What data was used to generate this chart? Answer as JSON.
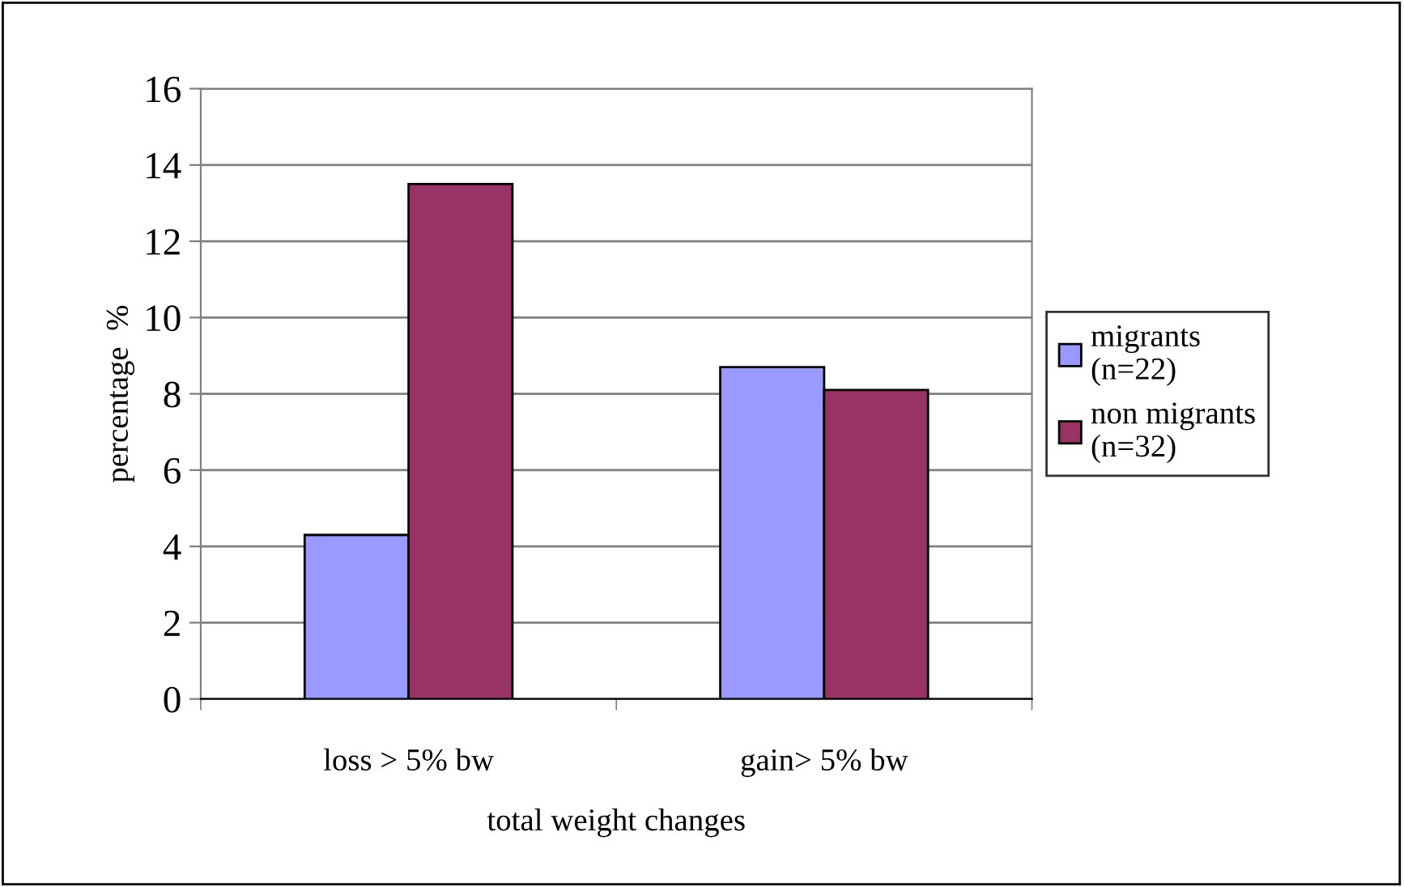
{
  "chart_data": {
    "type": "bar",
    "xlabel": "total weight changes",
    "ylabel": "percentage  %",
    "categories": [
      "loss > 5% bw",
      "gain> 5% bw"
    ],
    "series": [
      {
        "name": "migrants\n(n=22)",
        "color": "#9999ff",
        "values": [
          4.3,
          8.7
        ]
      },
      {
        "name": "non migrants\n(n=32)",
        "color": "#993366",
        "values": [
          13.5,
          8.1
        ]
      }
    ],
    "ylim": [
      0,
      16
    ],
    "yticks": [
      0,
      2,
      4,
      6,
      8,
      10,
      12,
      14,
      16
    ],
    "grid": "y",
    "legend": "right"
  }
}
